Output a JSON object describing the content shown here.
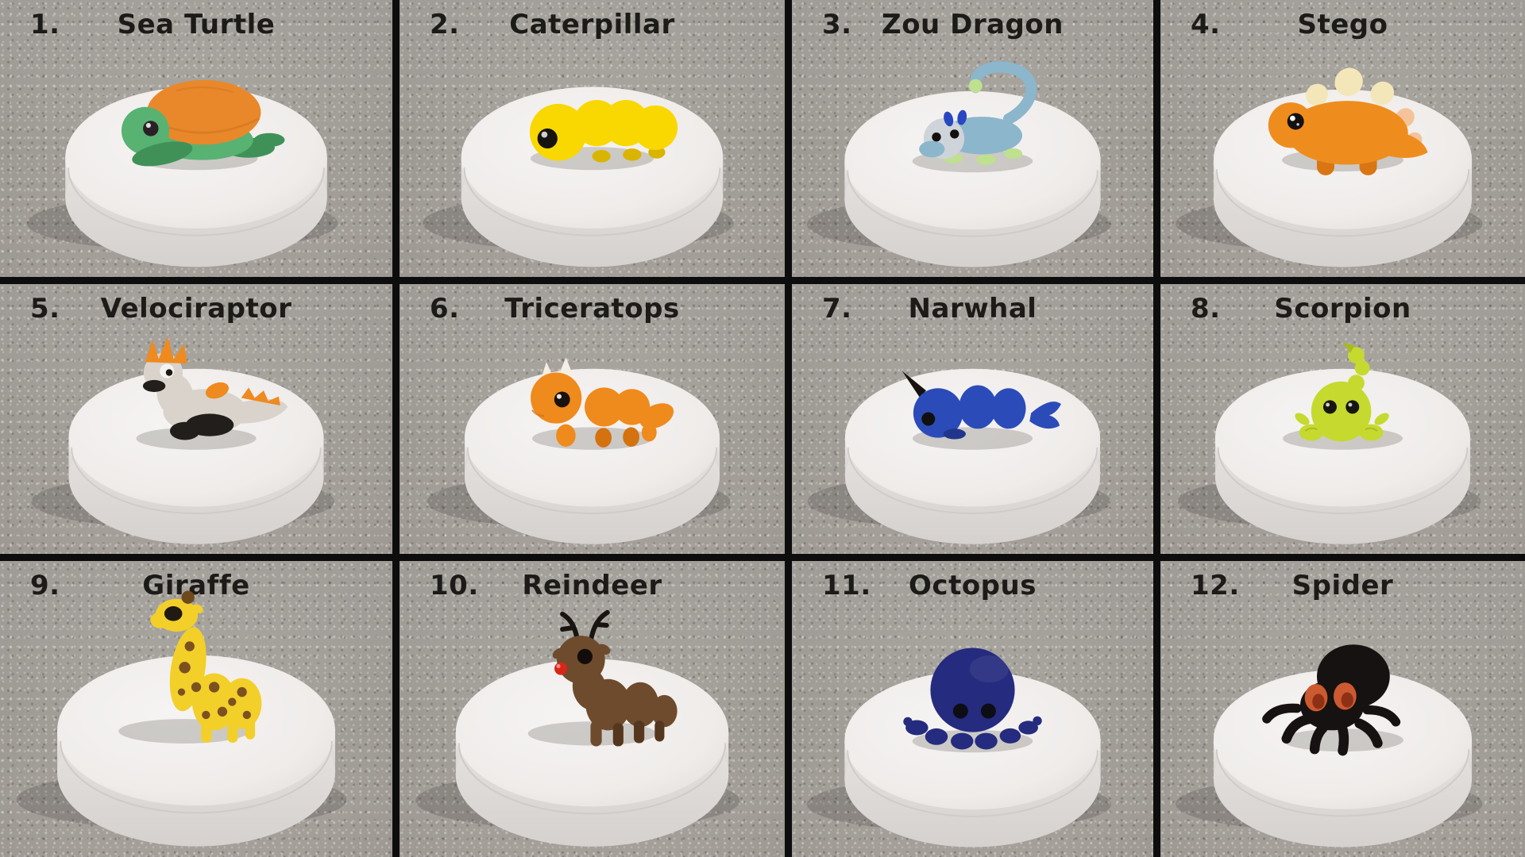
{
  "collage": {
    "divider_color": "#0d0d0d",
    "label_color": "#1d1b18",
    "carpet_base": "#a5a19b",
    "pedestal_color": "#efecea",
    "items": [
      {
        "number": "1.",
        "label": "Sea Turtle",
        "figurine": "sea-turtle",
        "colors": {
          "body": "#58b272",
          "bodyDark": "#3f9158",
          "shell": "#e9882a",
          "shellDark": "#c96f1d",
          "eye": "#2a2126"
        }
      },
      {
        "number": "2.",
        "label": "Caterpillar",
        "figurine": "caterpillar",
        "colors": {
          "body": "#f8d800",
          "bodyDark": "#d9b400",
          "eye": "#171310"
        }
      },
      {
        "number": "3.",
        "label": "Zou Dragon",
        "figurine": "zou-dragon",
        "colors": {
          "body": "#8cb6cc",
          "belly": "#cfd4da",
          "lime": "#bfe08e",
          "horn": "#2847c0",
          "eye": "#14100e"
        }
      },
      {
        "number": "4.",
        "label": "Stego",
        "figurine": "stego",
        "colors": {
          "body": "#ee8d1e",
          "bodyDark": "#d97613",
          "plate": "#f3e7b9",
          "plateSide": "#f4c39c",
          "eye": "#141210"
        }
      },
      {
        "number": "5.",
        "label": "Velociraptor",
        "figurine": "velociraptor",
        "colors": {
          "body": "#d9d3cb",
          "dark": "#211e1b",
          "crest": "#ee8a1f",
          "eye": "#f5f3f0",
          "pupil": "#1b1815"
        }
      },
      {
        "number": "6.",
        "label": "Triceratops",
        "figurine": "triceratops",
        "colors": {
          "body": "#ef8a1c",
          "bodyDark": "#d4720f",
          "horn": "#f4efe2",
          "eye": "#18130f"
        }
      },
      {
        "number": "7.",
        "label": "Narwhal",
        "figurine": "narwhal",
        "colors": {
          "body": "#2b4cb8",
          "bodyDark": "#20368c",
          "tusk": "#15120f",
          "eye": "#11100e"
        }
      },
      {
        "number": "8.",
        "label": "Scorpion",
        "figurine": "scorpion",
        "colors": {
          "body": "#c6d92f",
          "bodyDark": "#a8bb1e",
          "eye": "#181611"
        }
      },
      {
        "number": "9.",
        "label": "Giraffe",
        "figurine": "giraffe",
        "colors": {
          "body": "#f3cf2a",
          "spots": "#7b521f",
          "mane": "#6d4a1d",
          "eye": "#201a12"
        }
      },
      {
        "number": "10.",
        "label": "Reindeer",
        "figurine": "reindeer",
        "colors": {
          "body": "#6d4b2c",
          "bodyDark": "#54371e",
          "antler": "#19140f",
          "nose": "#d8261b",
          "noseShine": "#ff9d94",
          "eye": "#120d0a"
        }
      },
      {
        "number": "11.",
        "label": "Octopus",
        "figurine": "octopus",
        "colors": {
          "body": "#252b7e",
          "bodyDark": "#1a1f5e",
          "eye": "#0d0d16"
        }
      },
      {
        "number": "12.",
        "label": "Spider",
        "figurine": "spider",
        "colors": {
          "body": "#161211",
          "eye": "#cc5a30",
          "eyeDark": "#8e3015"
        }
      }
    ]
  }
}
